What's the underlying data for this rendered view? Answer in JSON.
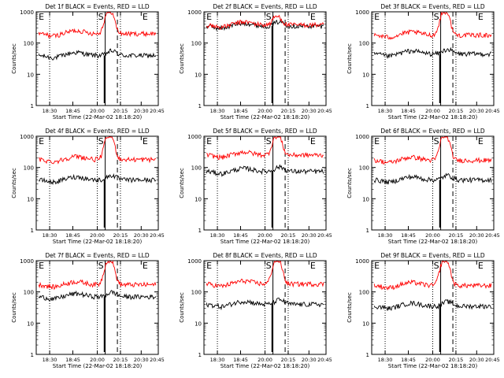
{
  "figure": {
    "ylabel": "Counts/sec",
    "xlabel": "Start Time (22-Mar-02 18:18:20)",
    "x_ticks": [
      "18:30",
      "18:45",
      "20:00",
      "20:15",
      "20:30",
      "20:45"
    ],
    "y_ticks": [
      "1",
      "10",
      "100",
      "1000"
    ],
    "markers": {
      "E_start": "E",
      "S": "S",
      "E_end": "E"
    },
    "colors": {
      "events": "#000000",
      "lld": "#ff0000",
      "axes": "#000000"
    }
  },
  "chart_data": [
    {
      "type": "line",
      "title": "Det 1f BLACK = Events, RED = LLD",
      "xlabel": "Start Time (22-Mar-02 18:18:20)",
      "ylabel": "Counts/sec",
      "y_scale": "log",
      "ylim": [
        1,
        1000
      ],
      "series": [
        {
          "name": "Events",
          "color": "#000000",
          "baseline": 40,
          "peak": 120
        },
        {
          "name": "LLD",
          "color": "#ff0000",
          "baseline": 200,
          "peak": 1000
        }
      ]
    },
    {
      "type": "line",
      "title": "Det 2f BLACK = Events, RED = LLD",
      "xlabel": "Start Time (22-Mar-02 18:18:20)",
      "ylabel": "Counts/sec",
      "y_scale": "log",
      "ylim": [
        1,
        1000
      ],
      "series": [
        {
          "name": "Events",
          "color": "#000000",
          "baseline": 350,
          "peak": 500
        },
        {
          "name": "LLD",
          "color": "#ff0000",
          "baseline": 380,
          "peak": 700
        }
      ]
    },
    {
      "type": "line",
      "title": "Det 3f BLACK = Events, RED = LLD",
      "xlabel": "Start Time (22-Mar-02 18:18:20)",
      "ylabel": "Counts/sec",
      "y_scale": "log",
      "ylim": [
        1,
        1000
      ],
      "series": [
        {
          "name": "Events",
          "color": "#000000",
          "baseline": 45,
          "peak": 120
        },
        {
          "name": "LLD",
          "color": "#ff0000",
          "baseline": 180,
          "peak": 1000
        }
      ]
    },
    {
      "type": "line",
      "title": "Det 4f BLACK = Events, RED = LLD",
      "xlabel": "Start Time (22-Mar-02 18:18:20)",
      "ylabel": "Counts/sec",
      "y_scale": "log",
      "ylim": [
        1,
        1000
      ],
      "series": [
        {
          "name": "Events",
          "color": "#000000",
          "baseline": 40,
          "peak": 120
        },
        {
          "name": "LLD",
          "color": "#ff0000",
          "baseline": 180,
          "peak": 1000
        }
      ]
    },
    {
      "type": "line",
      "title": "Det 5f BLACK = Events, RED = LLD",
      "xlabel": "Start Time (22-Mar-02 18:18:20)",
      "ylabel": "Counts/sec",
      "y_scale": "log",
      "ylim": [
        1,
        1000
      ],
      "series": [
        {
          "name": "Events",
          "color": "#000000",
          "baseline": 75,
          "peak": 150
        },
        {
          "name": "LLD",
          "color": "#ff0000",
          "baseline": 250,
          "peak": 1000
        }
      ]
    },
    {
      "type": "line",
      "title": "Det 6f BLACK = Events, RED = LLD",
      "xlabel": "Start Time (22-Mar-02 18:18:20)",
      "ylabel": "Counts/sec",
      "y_scale": "log",
      "ylim": [
        1,
        1000
      ],
      "series": [
        {
          "name": "Events",
          "color": "#000000",
          "baseline": 40,
          "peak": 120
        },
        {
          "name": "LLD",
          "color": "#ff0000",
          "baseline": 170,
          "peak": 1000
        }
      ]
    },
    {
      "type": "line",
      "title": "Det 7f BLACK = Events, RED = LLD",
      "xlabel": "Start Time (22-Mar-02 18:18:20)",
      "ylabel": "Counts/sec",
      "y_scale": "log",
      "ylim": [
        1,
        1000
      ],
      "series": [
        {
          "name": "Events",
          "color": "#000000",
          "baseline": 70,
          "peak": 150
        },
        {
          "name": "LLD",
          "color": "#ff0000",
          "baseline": 170,
          "peak": 1000
        }
      ]
    },
    {
      "type": "line",
      "title": "Det 8f BLACK = Events, RED = LLD",
      "xlabel": "Start Time (22-Mar-02 18:18:20)",
      "ylabel": "Counts/sec",
      "y_scale": "log",
      "ylim": [
        1,
        1000
      ],
      "series": [
        {
          "name": "Events",
          "color": "#000000",
          "baseline": 40,
          "peak": 120
        },
        {
          "name": "LLD",
          "color": "#ff0000",
          "baseline": 180,
          "peak": 1000
        }
      ]
    },
    {
      "type": "line",
      "title": "Det 9f BLACK = Events, RED = LLD",
      "xlabel": "Start Time (22-Mar-02 18:18:20)",
      "ylabel": "Counts/sec",
      "y_scale": "log",
      "ylim": [
        1,
        1000
      ],
      "series": [
        {
          "name": "Events",
          "color": "#000000",
          "baseline": 35,
          "peak": 120
        },
        {
          "name": "LLD",
          "color": "#ff0000",
          "baseline": 160,
          "peak": 1000
        }
      ]
    }
  ]
}
